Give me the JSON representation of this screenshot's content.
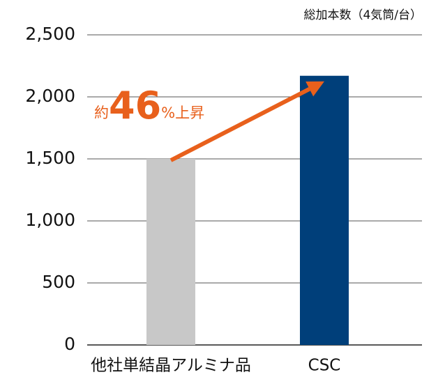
{
  "chart_data": {
    "type": "bar",
    "unit_label": "総加本数（4気筒/台）",
    "categories": [
      "他社単結晶アルミナ品",
      "CSC"
    ],
    "values": [
      1500,
      2170
    ],
    "colors": [
      "#c8c8c8",
      "#003f7a"
    ],
    "ylim": [
      0,
      2500
    ],
    "yticks": [
      0,
      500,
      {
        "value": 1000,
        "label": "1,000"
      },
      {
        "value": 1500,
        "label": "1,500"
      },
      {
        "value": 2000,
        "label": "2,000"
      },
      {
        "value": 2500,
        "label": "2,500"
      }
    ],
    "grid": true,
    "annotation": [
      "約",
      "46",
      "%上昇"
    ],
    "annotation_color": "#e8601c"
  }
}
